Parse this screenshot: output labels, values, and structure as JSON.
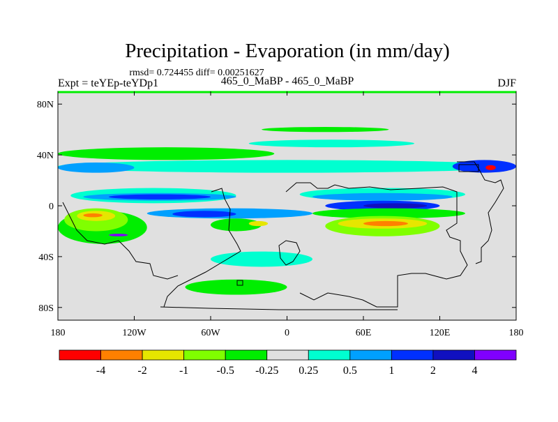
{
  "chart_data": {
    "type": "heatmap",
    "title": "Precipitation - Evaporation (in mm/day)",
    "subtitle": "rmsd= 0.724455 diff= 0.00251627",
    "left_label": "Expt = teYEp-teYDp1",
    "center_label": "465_0_MaBP - 465_0_MaBP",
    "right_label": "DJF",
    "x_ticks": [
      "180",
      "120W",
      "60W",
      "0",
      "60E",
      "120E",
      "180"
    ],
    "y_ticks": [
      "80N",
      "40N",
      "0",
      "40S",
      "80S"
    ],
    "xlim": [
      -180,
      180
    ],
    "ylim": [
      -90,
      90
    ],
    "colorbar": {
      "colors": [
        "#ff0000",
        "#ff8000",
        "#e6e600",
        "#80ff00",
        "#00ee00",
        "#e0e0e0",
        "#00ffd0",
        "#00a0ff",
        "#0030ff",
        "#1010c0",
        "#8000ff"
      ],
      "labels": [
        "-4",
        "-2",
        "-1",
        "-0.5",
        "-0.25",
        "0.25",
        "0.5",
        "1",
        "2",
        "4"
      ]
    },
    "regions": [
      {
        "level": 6,
        "lon": [
          -170,
          -40
        ],
        "lat": [
          2,
          14
        ]
      },
      {
        "level": 6,
        "lon": [
          10,
          140
        ],
        "lat": [
          4,
          14
        ]
      },
      {
        "level": 6,
        "lon": [
          -180,
          180
        ],
        "lat": [
          26,
          36
        ]
      },
      {
        "level": 6,
        "lon": [
          -30,
          100
        ],
        "lat": [
          46,
          52
        ]
      },
      {
        "level": 6,
        "lon": [
          -60,
          20
        ],
        "lat": [
          -48,
          -36
        ]
      },
      {
        "level": 7,
        "lon": [
          -160,
          -40
        ],
        "lat": [
          4,
          10
        ]
      },
      {
        "level": 7,
        "lon": [
          20,
          130
        ],
        "lat": [
          4,
          10
        ]
      },
      {
        "level": 7,
        "lon": [
          -180,
          -120
        ],
        "lat": [
          26,
          34
        ]
      },
      {
        "level": 7,
        "lon": [
          -110,
          20
        ],
        "lat": [
          -10,
          -2
        ]
      },
      {
        "level": 8,
        "lon": [
          -140,
          -60
        ],
        "lat": [
          5,
          9
        ]
      },
      {
        "level": 8,
        "lon": [
          30,
          120
        ],
        "lat": [
          -4,
          4
        ]
      },
      {
        "level": 8,
        "lon": [
          -90,
          -40
        ],
        "lat": [
          -9,
          -4
        ]
      },
      {
        "level": 8,
        "lon": [
          130,
          180
        ],
        "lat": [
          26,
          36
        ]
      },
      {
        "level": 9,
        "lon": [
          60,
          110
        ],
        "lat": [
          -2,
          2
        ]
      },
      {
        "level": 9,
        "lon": [
          -140,
          -120
        ],
        "lat": [
          -26,
          -22
        ]
      },
      {
        "level": 4,
        "lon": [
          -180,
          -10
        ],
        "lat": [
          36,
          46
        ]
      },
      {
        "level": 4,
        "lon": [
          -20,
          80
        ],
        "lat": [
          58,
          62
        ]
      },
      {
        "level": 4,
        "lon": [
          20,
          140
        ],
        "lat": [
          -10,
          -2
        ]
      },
      {
        "level": 4,
        "lon": [
          -180,
          -110
        ],
        "lat": [
          -30,
          -4
        ]
      },
      {
        "level": 4,
        "lon": [
          -60,
          -20
        ],
        "lat": [
          -20,
          -10
        ]
      },
      {
        "level": 4,
        "lon": [
          -80,
          0
        ],
        "lat": [
          -70,
          -58
        ]
      },
      {
        "level": 3,
        "lon": [
          30,
          120
        ],
        "lat": [
          -24,
          -8
        ]
      },
      {
        "level": 3,
        "lon": [
          -175,
          -125
        ],
        "lat": [
          -20,
          -2
        ]
      },
      {
        "level": 2,
        "lon": [
          40,
          110
        ],
        "lat": [
          -18,
          -10
        ]
      },
      {
        "level": 2,
        "lon": [
          -165,
          -135
        ],
        "lat": [
          -12,
          -4
        ]
      },
      {
        "level": 2,
        "lon": [
          -30,
          -15
        ],
        "lat": [
          -16,
          -12
        ]
      },
      {
        "level": 1,
        "lon": [
          60,
          95
        ],
        "lat": [
          -16,
          -12
        ]
      },
      {
        "level": 1,
        "lon": [
          -160,
          -145
        ],
        "lat": [
          -9,
          -6
        ]
      },
      {
        "level": 0,
        "lon": [
          156,
          164
        ],
        "lat": [
          28,
          32
        ]
      },
      {
        "level": 10,
        "lon": [
          -140,
          -125
        ],
        "lat": [
          -24,
          -22
        ]
      }
    ]
  }
}
